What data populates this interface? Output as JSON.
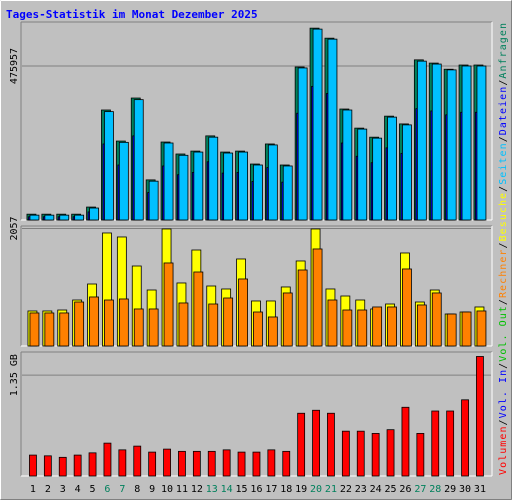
{
  "chart_data": [
    {
      "type": "bar",
      "title": "Tages-Statistik im Monat Dezember 2025",
      "ylim": [
        0,
        612000
      ],
      "yticks": [
        475957
      ],
      "grid": true,
      "series": [
        {
          "name": "Anfragen",
          "color": "#00805c",
          "values": [
            18000,
            18000,
            18000,
            18000,
            40000,
            340000,
            244000,
            377000,
            124000,
            241000,
            204000,
            213000,
            260000,
            210000,
            213000,
            173000,
            235000,
            170000,
            473000,
            593000,
            562000,
            343000,
            284000,
            256000,
            321000,
            297000,
            495000,
            485000,
            466000,
            479000,
            479000
          ]
        },
        {
          "name": "Dateien",
          "color": "#0000ff",
          "values": [
            10000,
            10000,
            10000,
            10000,
            25000,
            235000,
            170000,
            260000,
            85000,
            167000,
            140000,
            147000,
            180000,
            145000,
            147000,
            119000,
            162000,
            117000,
            330000,
            413000,
            391000,
            238000,
            197000,
            177000,
            223000,
            206000,
            344000,
            337000,
            325000,
            333000,
            333000
          ]
        },
        {
          "name": "Seiten",
          "color": "#00c0ff",
          "values": [
            15000,
            15000,
            15000,
            15000,
            37000,
            335000,
            240000,
            372000,
            120000,
            238000,
            200000,
            210000,
            256000,
            207000,
            210000,
            170000,
            232000,
            167000,
            470000,
            590000,
            559000,
            340000,
            281000,
            253000,
            318000,
            294000,
            491000,
            482000,
            464000,
            476000,
            476000
          ]
        }
      ]
    },
    {
      "type": "bar",
      "ylim": [
        0,
        2100
      ],
      "yticks": [
        2057
      ],
      "grid": true,
      "series": [
        {
          "name": "Besuche",
          "color": "#ffff00",
          "values": [
            613,
            613,
            630,
            805,
            1085,
            1978,
            1908,
            1400,
            980,
            2048,
            1103,
            1680,
            1050,
            998,
            1523,
            788,
            788,
            1033,
            1488,
            2048,
            998,
            875,
            805,
            648,
            735,
            1628,
            770,
            980,
            560,
            595,
            683
          ]
        },
        {
          "name": "Rechner",
          "color": "#ff8000",
          "values": [
            578,
            578,
            578,
            770,
            858,
            805,
            823,
            648,
            648,
            1453,
            753,
            1295,
            735,
            840,
            1173,
            595,
            508,
            928,
            1330,
            1698,
            805,
            630,
            630,
            683,
            683,
            1348,
            718,
            928,
            560,
            595,
            613
          ]
        }
      ]
    },
    {
      "type": "bar",
      "categories": [
        "1",
        "2",
        "3",
        "4",
        "5",
        "6",
        "7",
        "8",
        "9",
        "10",
        "11",
        "12",
        "13",
        "14",
        "15",
        "16",
        "17",
        "18",
        "19",
        "20",
        "21",
        "22",
        "23",
        "24",
        "25",
        "26",
        "27",
        "28",
        "29",
        "30",
        "31"
      ],
      "category_colors": [
        "#000000",
        "#000000",
        "#000000",
        "#000000",
        "#000000",
        "#00805c",
        "#00805c",
        "#000000",
        "#000000",
        "#000000",
        "#000000",
        "#000000",
        "#00805c",
        "#00805c",
        "#000000",
        "#000000",
        "#000000",
        "#000000",
        "#000000",
        "#00805c",
        "#00805c",
        "#000000",
        "#000000",
        "#000000",
        "#000000",
        "#000000",
        "#00805c",
        "#00805c",
        "#000000",
        "#000000",
        "#000000"
      ],
      "ylim": [
        0,
        1.66
      ],
      "yticks": [
        {
          "value": 1.35,
          "label": "1.35 GB"
        }
      ],
      "grid": true,
      "series": [
        {
          "name": "Volumen",
          "color": "#ff0000",
          "values": [
            0.28,
            0.27,
            0.25,
            0.28,
            0.31,
            0.44,
            0.35,
            0.4,
            0.32,
            0.36,
            0.33,
            0.33,
            0.33,
            0.35,
            0.32,
            0.32,
            0.35,
            0.33,
            0.84,
            0.88,
            0.84,
            0.6,
            0.6,
            0.57,
            0.62,
            0.92,
            0.57,
            0.87,
            0.87,
            1.02,
            1.6
          ]
        }
      ],
      "legend_only": [
        {
          "name": "Vol. In",
          "color": "#0000ff"
        },
        {
          "name": "Vol. Out",
          "color": "#00c000"
        }
      ],
      "legend_separator": "/"
    }
  ]
}
